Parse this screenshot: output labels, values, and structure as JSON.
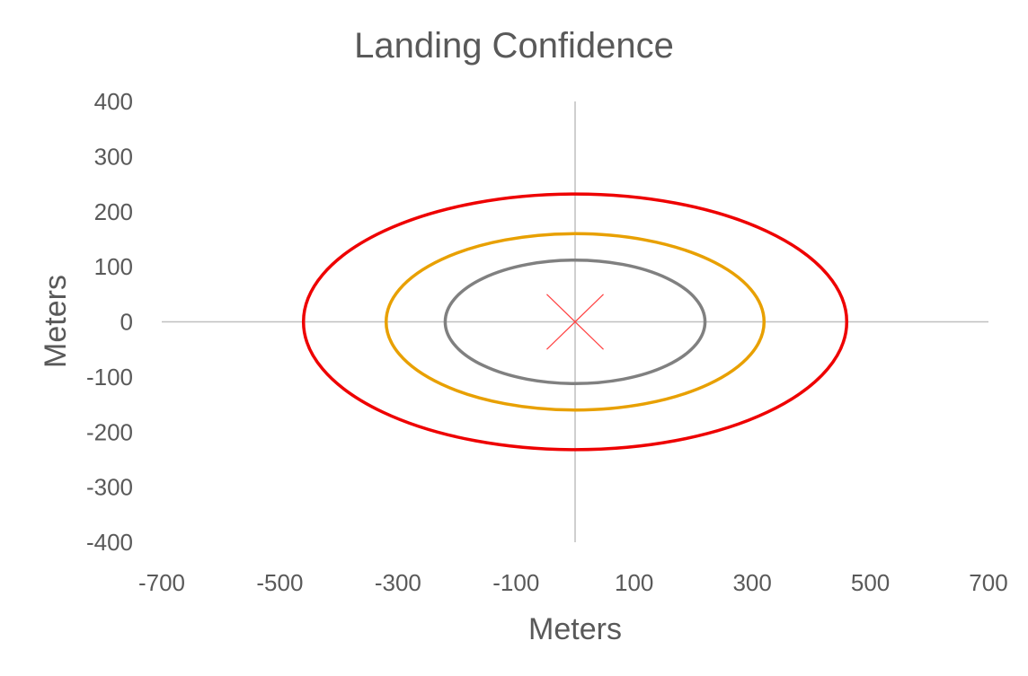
{
  "chart_data": {
    "type": "scatter",
    "title": "Landing Confidence",
    "xlabel": "Meters",
    "ylabel": "Meters",
    "xlim": [
      -700,
      700
    ],
    "ylim": [
      -400,
      400
    ],
    "x_ticks": [
      -700,
      -500,
      -300,
      -100,
      100,
      300,
      500,
      700
    ],
    "y_ticks": [
      400,
      300,
      200,
      100,
      0,
      -100,
      -200,
      -300,
      -400
    ],
    "grid": false,
    "legend": "none",
    "series": [
      {
        "shape": "ellipse",
        "center": [
          0,
          0
        ],
        "rx": 220,
        "ry": 112,
        "color": "#808080"
      },
      {
        "shape": "ellipse",
        "center": [
          0,
          0
        ],
        "rx": 320,
        "ry": 160,
        "color": "#E8A000"
      },
      {
        "shape": "ellipse",
        "center": [
          0,
          0
        ],
        "rx": 460,
        "ry": 232,
        "color": "#EE0000"
      },
      {
        "shape": "x-marker",
        "center": [
          0,
          0
        ],
        "half_width": 48,
        "half_height": 50,
        "color": "#FF4040"
      }
    ],
    "axis_color": "#BFBFBF"
  }
}
